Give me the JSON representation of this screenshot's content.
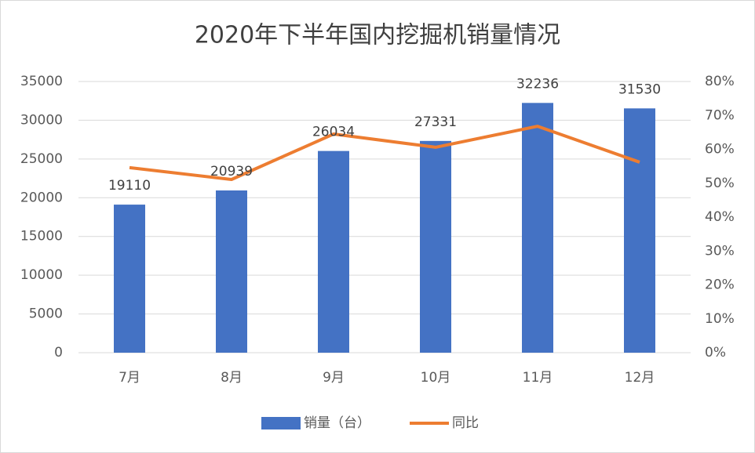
{
  "chart_data": {
    "type": "bar",
    "title": "2020年下半年国内挖掘机销量情况",
    "categories": [
      "7月",
      "8月",
      "9月",
      "10月",
      "11月",
      "12月"
    ],
    "series": [
      {
        "name": "销量（台）",
        "color": "#4472c4",
        "type": "bar",
        "values": [
          19110,
          20939,
          26034,
          27331,
          32236,
          31530
        ]
      },
      {
        "name": "同比",
        "color": "#ed7d31",
        "type": "line",
        "axis": "y2",
        "values": [
          54.6,
          51.1,
          64.5,
          60.6,
          66.8,
          56.2
        ]
      }
    ],
    "ylim": [
      0,
      35000
    ],
    "yticks": [
      0,
      5000,
      10000,
      15000,
      20000,
      25000,
      30000,
      35000
    ],
    "y2lim": [
      0,
      80
    ],
    "y2ticks": [
      {
        "value": 0,
        "label": "0%"
      },
      {
        "value": 10,
        "label": "10%"
      },
      {
        "value": 20,
        "label": "20%"
      },
      {
        "value": 30,
        "label": "30%"
      },
      {
        "value": 40,
        "label": "40%"
      },
      {
        "value": 50,
        "label": "50%"
      },
      {
        "value": 60,
        "label": "60%"
      },
      {
        "value": 70,
        "label": "70%"
      },
      {
        "value": 80,
        "label": "80%"
      }
    ],
    "grid": true,
    "legend": "bottom"
  }
}
